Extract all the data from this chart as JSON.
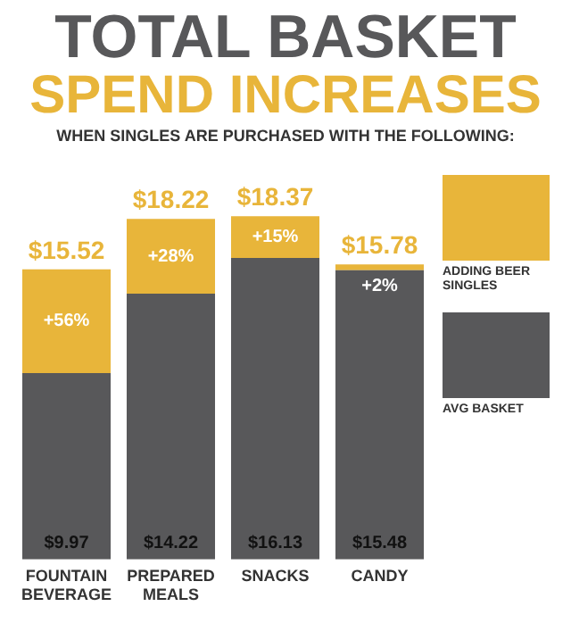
{
  "chart_data": {
    "type": "bar",
    "title": "TOTAL BASKET",
    "subtitle": "SPEND INCREASES",
    "annotations": [
      "WHEN SINGLES ARE PURCHASED WITH THE FOLLOWING:",
      "+56%",
      "+28%",
      "+15%",
      "+2%"
    ],
    "categories": [
      "FOUNTAIN BEVERAGE",
      "PREPARED MEALS",
      "SNACKS",
      "CANDY"
    ],
    "stacked": true,
    "legend": "right",
    "grid": false,
    "tick_labels": "x",
    "series": [
      {
        "name": "AVG BASKET",
        "color": "#58585a",
        "values": [
          9.97,
          14.22,
          16.13,
          15.48
        ],
        "value_labels": [
          "$9.97",
          "$14.22",
          "$16.13",
          "$15.48"
        ]
      },
      {
        "name": "ADDING BEER SINGLES",
        "color": "#e8b53a",
        "values": [
          5.55,
          4.0,
          2.24,
          0.3
        ]
      }
    ],
    "totals": [
      "$15.52",
      "$18.22",
      "$18.37",
      "$15.78"
    ]
  }
}
